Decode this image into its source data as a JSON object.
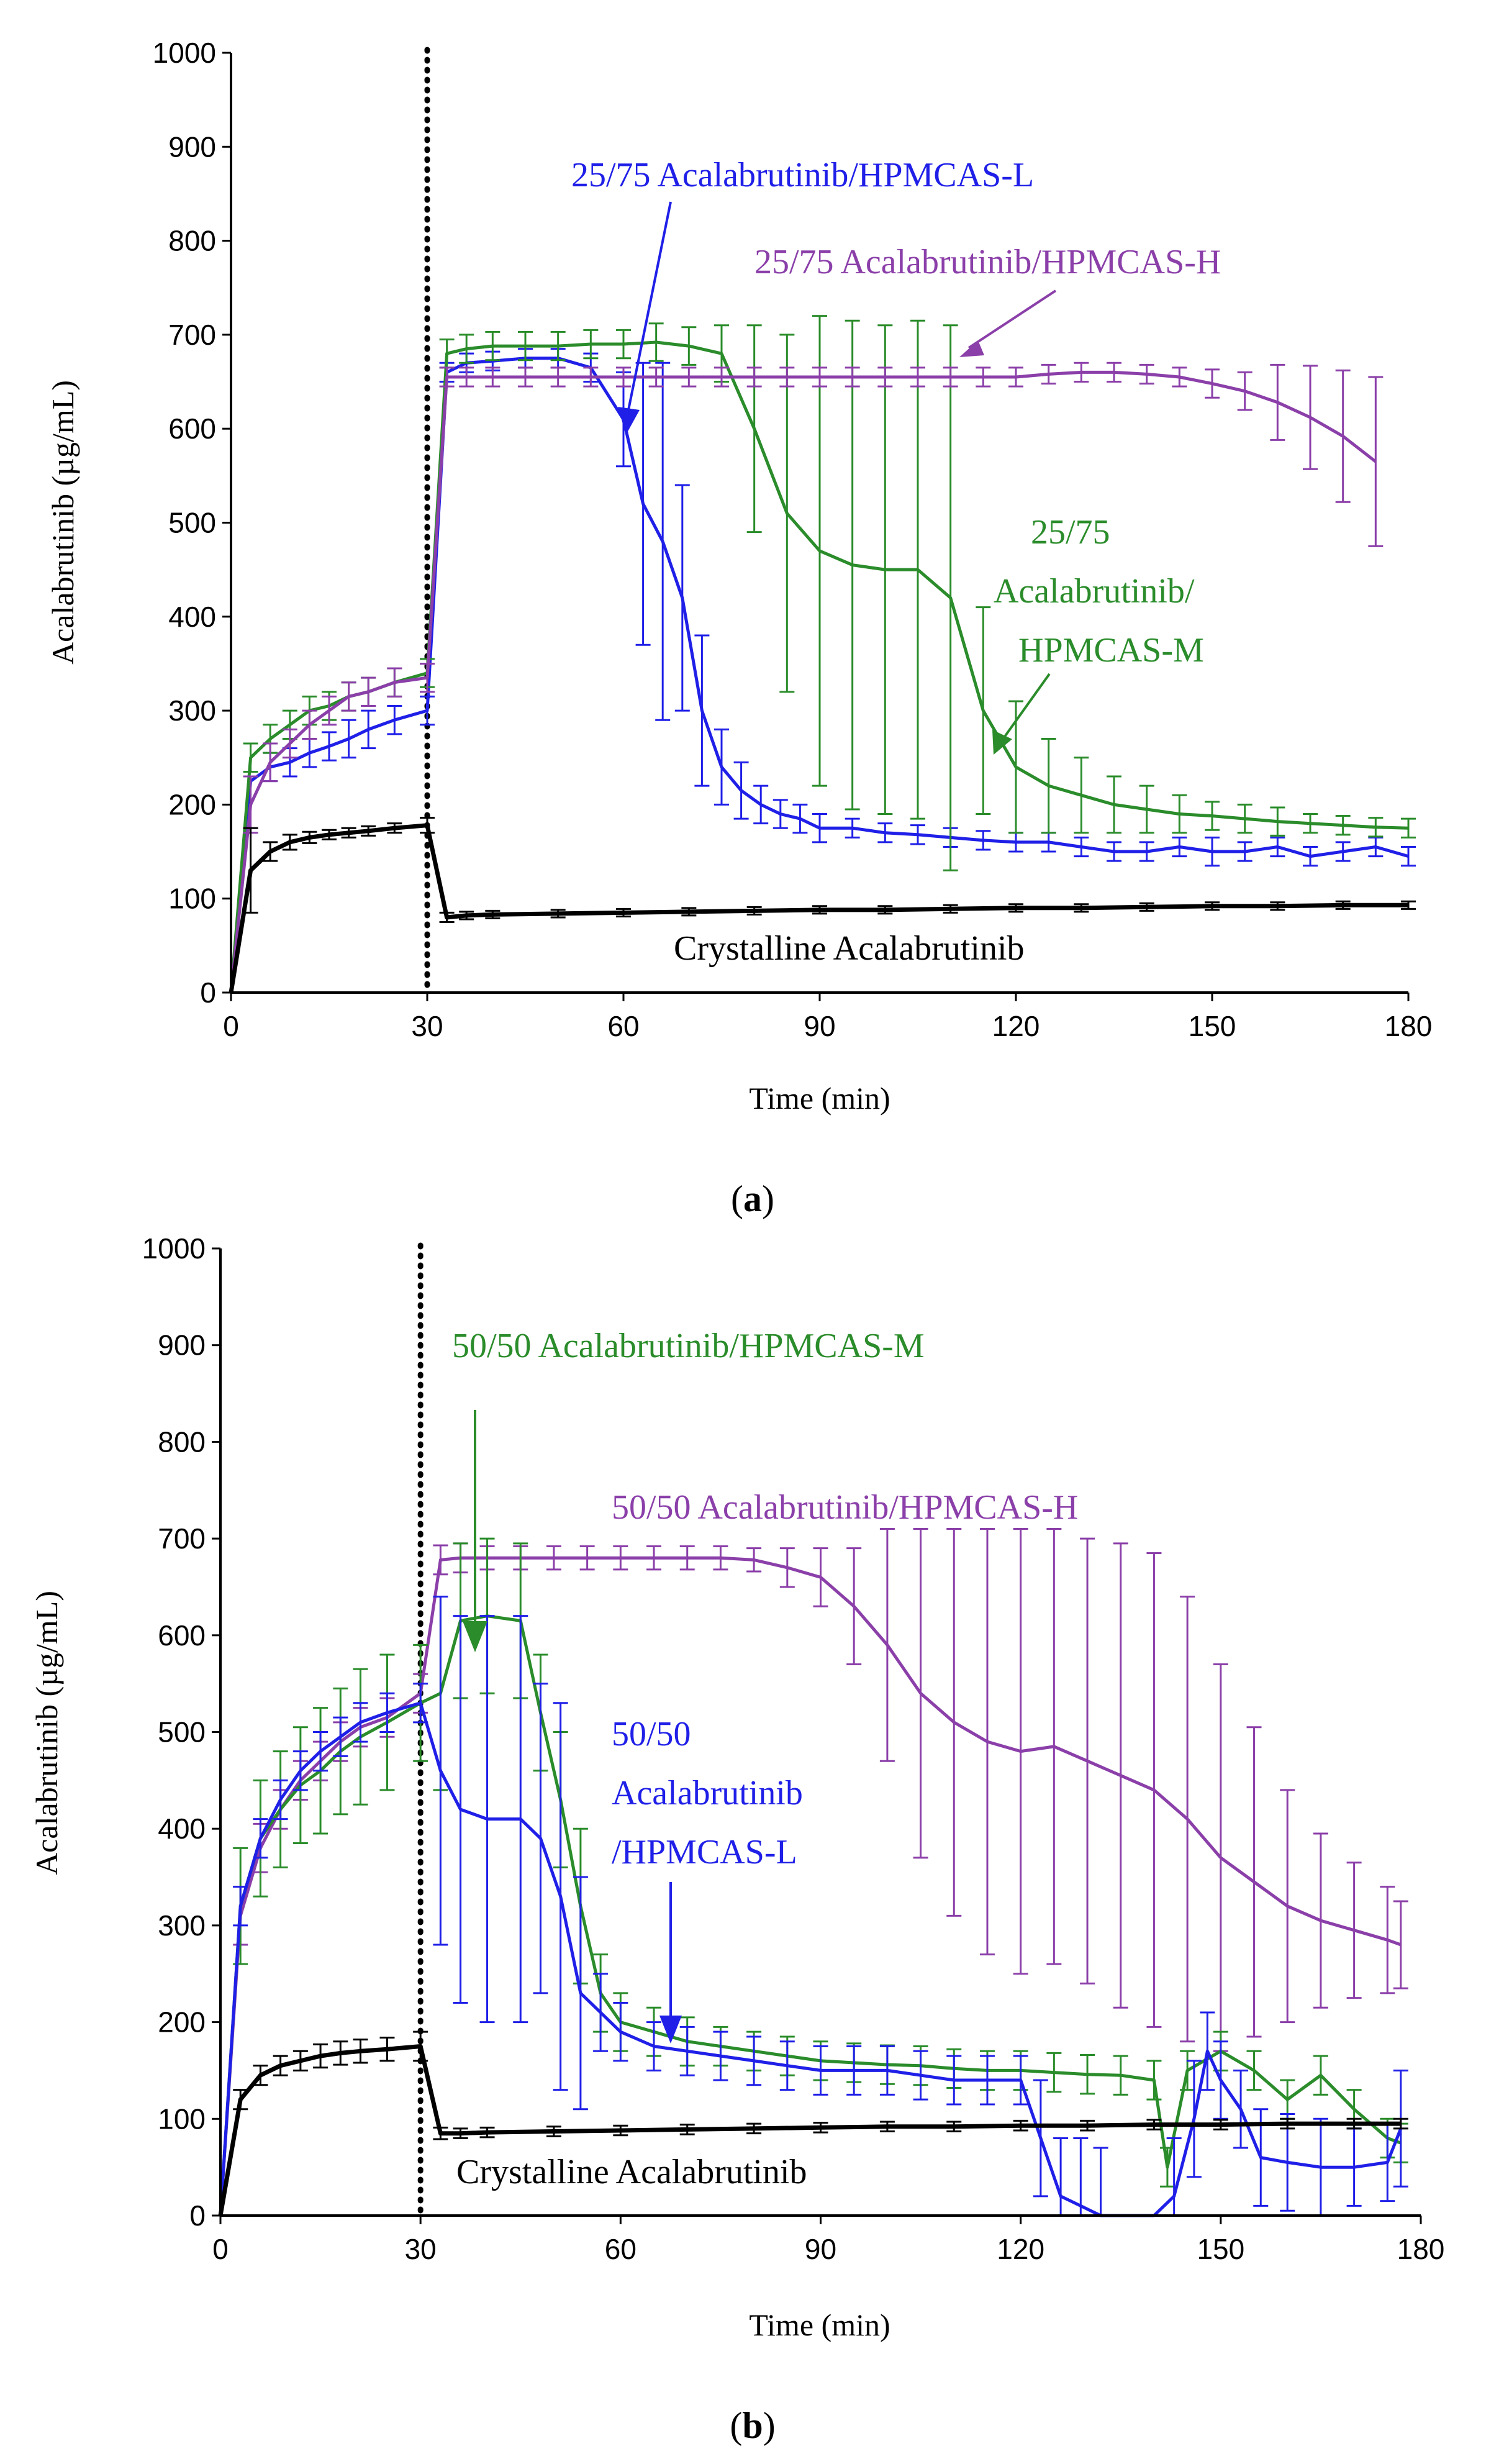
{
  "colors": {
    "l_series": "#1f1fe8",
    "m_series": "#2a8c2a",
    "h_series": "#8b3fa9",
    "crystalline": "#000000",
    "divider": "#000000"
  },
  "chart_data": [
    {
      "panel_label": "(a)",
      "panel_bold": "a",
      "type": "line",
      "xlabel": "Time (min)",
      "ylabel": "Acalabrutinib (µg/mL)",
      "xlim": [
        0,
        180
      ],
      "ylim": [
        0,
        1000
      ],
      "xticks": [
        0,
        30,
        60,
        90,
        120,
        150,
        180
      ],
      "yticks": [
        0,
        100,
        200,
        300,
        400,
        500,
        600,
        700,
        800,
        900,
        1000
      ],
      "divider_x": 30,
      "series": [
        {
          "key": "l_series",
          "name": "25/75 Acalabrutinib/HPMCAS-L",
          "x": [
            0,
            3,
            6,
            9,
            12,
            15,
            18,
            21,
            25,
            30,
            33,
            36,
            40,
            45,
            50,
            55,
            60,
            63,
            66,
            69,
            72,
            75,
            78,
            81,
            84,
            87,
            90,
            95,
            100,
            105,
            110,
            115,
            120,
            125,
            130,
            135,
            140,
            145,
            150,
            155,
            160,
            165,
            170,
            175,
            180
          ],
          "y": [
            0,
            225,
            240,
            245,
            255,
            262,
            270,
            280,
            290,
            300,
            660,
            670,
            672,
            675,
            675,
            665,
            610,
            520,
            480,
            420,
            300,
            240,
            215,
            200,
            190,
            185,
            175,
            175,
            170,
            168,
            165,
            162,
            160,
            160,
            155,
            150,
            150,
            155,
            150,
            150,
            155,
            145,
            150,
            155,
            145
          ],
          "err": [
            0,
            0,
            15,
            15,
            15,
            15,
            20,
            20,
            15,
            15,
            10,
            10,
            10,
            10,
            10,
            15,
            50,
            150,
            190,
            120,
            80,
            40,
            30,
            20,
            15,
            15,
            15,
            10,
            10,
            10,
            10,
            10,
            10,
            10,
            10,
            10,
            10,
            10,
            15,
            10,
            10,
            10,
            10,
            10,
            10
          ]
        },
        {
          "key": "m_series",
          "name": "25/75 Acalabrutinib/HPMCAS-M",
          "x": [
            0,
            3,
            6,
            9,
            12,
            15,
            18,
            21,
            25,
            30,
            33,
            36,
            40,
            45,
            50,
            55,
            60,
            65,
            70,
            75,
            80,
            85,
            90,
            95,
            100,
            105,
            110,
            115,
            120,
            125,
            130,
            135,
            140,
            145,
            150,
            155,
            160,
            165,
            170,
            175,
            180
          ],
          "y": [
            0,
            250,
            270,
            285,
            300,
            305,
            315,
            320,
            330,
            340,
            680,
            685,
            688,
            688,
            688,
            690,
            690,
            692,
            688,
            680,
            600,
            510,
            470,
            455,
            450,
            450,
            420,
            300,
            240,
            220,
            210,
            200,
            195,
            190,
            188,
            185,
            182,
            180,
            178,
            176,
            175
          ],
          "err": [
            0,
            15,
            15,
            15,
            15,
            15,
            15,
            15,
            15,
            15,
            15,
            15,
            15,
            15,
            15,
            15,
            15,
            20,
            20,
            30,
            110,
            190,
            250,
            260,
            260,
            265,
            290,
            110,
            70,
            50,
            40,
            30,
            25,
            20,
            15,
            15,
            15,
            10,
            10,
            10,
            10
          ]
        },
        {
          "key": "h_series",
          "name": "25/75 Acalabrutinib/HPMCAS-H",
          "x": [
            0,
            3,
            6,
            9,
            12,
            15,
            18,
            21,
            25,
            30,
            33,
            36,
            40,
            45,
            50,
            55,
            60,
            65,
            70,
            75,
            80,
            85,
            90,
            95,
            100,
            105,
            110,
            115,
            120,
            125,
            130,
            135,
            140,
            145,
            150,
            155,
            160,
            165,
            170,
            175
          ],
          "y": [
            0,
            200,
            245,
            265,
            285,
            300,
            315,
            320,
            330,
            335,
            655,
            655,
            655,
            655,
            655,
            655,
            655,
            655,
            655,
            655,
            655,
            655,
            655,
            655,
            655,
            655,
            655,
            655,
            655,
            658,
            660,
            660,
            658,
            655,
            648,
            640,
            628,
            612,
            592,
            565
          ],
          "err": [
            0,
            30,
            20,
            15,
            15,
            15,
            15,
            15,
            15,
            15,
            10,
            10,
            10,
            10,
            10,
            10,
            10,
            10,
            10,
            10,
            10,
            10,
            10,
            10,
            10,
            10,
            10,
            10,
            10,
            10,
            10,
            10,
            10,
            10,
            15,
            20,
            40,
            55,
            70,
            90
          ]
        },
        {
          "key": "crystalline",
          "name": "Crystalline Acalabrutinib",
          "x": [
            0,
            3,
            6,
            9,
            12,
            15,
            18,
            21,
            25,
            30,
            33,
            36,
            40,
            50,
            60,
            70,
            80,
            90,
            100,
            110,
            120,
            130,
            140,
            150,
            160,
            170,
            180
          ],
          "y": [
            0,
            130,
            150,
            160,
            165,
            168,
            170,
            172,
            175,
            178,
            80,
            82,
            83,
            84,
            85,
            86,
            87,
            88,
            88,
            89,
            90,
            90,
            91,
            92,
            92,
            93,
            93
          ],
          "err": [
            0,
            45,
            10,
            8,
            6,
            5,
            5,
            5,
            5,
            8,
            5,
            4,
            4,
            4,
            4,
            4,
            4,
            4,
            4,
            4,
            4,
            4,
            4,
            4,
            4,
            4,
            4
          ]
        }
      ],
      "annotations": {
        "l": "25/75 Acalabrutinib/HPMCAS-L",
        "h": "25/75 Acalabrutinib/HPMCAS-H",
        "m1": "25/75",
        "m2": "Acalabrutinib/",
        "m3": "HPMCAS-M",
        "c": "Crystalline Acalabrutinib"
      }
    },
    {
      "panel_label": "(b)",
      "panel_bold": "b",
      "type": "line",
      "xlabel": "Time (min)",
      "ylabel": "Acalabrutinib (µg/mL)",
      "xlim": [
        0,
        180
      ],
      "ylim": [
        0,
        1000
      ],
      "xticks": [
        0,
        30,
        60,
        90,
        120,
        150,
        180
      ],
      "yticks": [
        0,
        100,
        200,
        300,
        400,
        500,
        600,
        700,
        800,
        900,
        1000
      ],
      "divider_x": 30,
      "series": [
        {
          "key": "h_series",
          "name": "50/50 Acalabrutinib/HPMCAS-H",
          "x": [
            0,
            3,
            6,
            9,
            12,
            15,
            18,
            21,
            25,
            30,
            33,
            36,
            40,
            45,
            50,
            55,
            60,
            65,
            70,
            75,
            80,
            85,
            90,
            95,
            100,
            105,
            110,
            115,
            120,
            125,
            130,
            135,
            140,
            145,
            150,
            155,
            160,
            165,
            170,
            175,
            177
          ],
          "y": [
            0,
            310,
            380,
            420,
            450,
            470,
            490,
            505,
            515,
            540,
            678,
            680,
            680,
            680,
            680,
            680,
            680,
            680,
            680,
            680,
            678,
            670,
            660,
            630,
            590,
            540,
            510,
            490,
            480,
            485,
            470,
            455,
            440,
            410,
            370,
            345,
            320,
            305,
            295,
            285,
            280
          ],
          "err": [
            0,
            30,
            25,
            20,
            20,
            20,
            20,
            20,
            20,
            20,
            15,
            15,
            12,
            12,
            12,
            12,
            12,
            12,
            12,
            12,
            12,
            20,
            30,
            60,
            120,
            170,
            200,
            220,
            230,
            225,
            230,
            240,
            245,
            230,
            200,
            160,
            120,
            90,
            70,
            55,
            45
          ]
        },
        {
          "key": "m_series",
          "name": "50/50 Acalabrutinib/HPMCAS-M",
          "x": [
            0,
            3,
            6,
            9,
            12,
            15,
            18,
            21,
            25,
            30,
            33,
            36,
            40,
            45,
            48,
            51,
            54,
            57,
            60,
            65,
            70,
            75,
            80,
            85,
            90,
            95,
            100,
            105,
            110,
            115,
            120,
            125,
            130,
            135,
            140,
            142,
            145,
            150,
            155,
            160,
            165,
            170,
            175,
            177
          ],
          "y": [
            0,
            320,
            390,
            420,
            445,
            460,
            480,
            495,
            510,
            530,
            540,
            615,
            620,
            615,
            520,
            430,
            320,
            230,
            200,
            190,
            180,
            175,
            170,
            165,
            160,
            158,
            156,
            155,
            152,
            150,
            150,
            148,
            146,
            145,
            140,
            50,
            150,
            170,
            150,
            120,
            145,
            110,
            80,
            75
          ],
          "err": [
            0,
            60,
            60,
            60,
            60,
            65,
            65,
            70,
            70,
            60,
            100,
            80,
            80,
            80,
            60,
            70,
            80,
            40,
            30,
            25,
            25,
            20,
            20,
            20,
            20,
            20,
            20,
            20,
            20,
            20,
            20,
            20,
            20,
            20,
            20,
            20,
            20,
            20,
            20,
            20,
            20,
            20,
            20,
            20
          ]
        },
        {
          "key": "l_series",
          "name": "50/50 Acalabrutinib/HPMCAS-L",
          "x": [
            0,
            3,
            6,
            9,
            12,
            15,
            18,
            21,
            25,
            30,
            33,
            36,
            40,
            45,
            48,
            51,
            54,
            57,
            60,
            65,
            70,
            75,
            80,
            85,
            90,
            95,
            100,
            105,
            110,
            115,
            120,
            123,
            126,
            129,
            132,
            135,
            140,
            143,
            146,
            148,
            150,
            153,
            156,
            160,
            165,
            170,
            175,
            177
          ],
          "y": [
            0,
            320,
            390,
            430,
            460,
            480,
            495,
            510,
            520,
            530,
            460,
            420,
            410,
            410,
            390,
            330,
            230,
            210,
            190,
            175,
            170,
            165,
            160,
            155,
            150,
            150,
            150,
            145,
            140,
            140,
            140,
            80,
            20,
            10,
            0,
            0,
            0,
            20,
            100,
            170,
            140,
            110,
            60,
            55,
            50,
            50,
            55,
            90
          ],
          "err": [
            0,
            20,
            20,
            20,
            20,
            20,
            20,
            20,
            20,
            20,
            180,
            200,
            210,
            210,
            160,
            200,
            120,
            40,
            30,
            25,
            25,
            25,
            25,
            25,
            25,
            25,
            25,
            25,
            25,
            25,
            25,
            60,
            60,
            70,
            70,
            0,
            0,
            60,
            60,
            40,
            40,
            40,
            50,
            50,
            50,
            40,
            40,
            60
          ]
        },
        {
          "key": "crystalline",
          "name": "Crystalline Acalabrutinib",
          "x": [
            0,
            3,
            6,
            9,
            12,
            15,
            18,
            21,
            25,
            30,
            33,
            36,
            40,
            50,
            60,
            70,
            80,
            90,
            100,
            110,
            120,
            130,
            140,
            150,
            160,
            170,
            177
          ],
          "y": [
            0,
            120,
            145,
            155,
            160,
            165,
            168,
            170,
            172,
            175,
            85,
            85,
            86,
            87,
            88,
            89,
            90,
            91,
            92,
            92,
            93,
            93,
            94,
            94,
            95,
            95,
            95
          ],
          "err": [
            0,
            10,
            10,
            10,
            10,
            12,
            12,
            12,
            12,
            15,
            6,
            5,
            5,
            5,
            5,
            5,
            5,
            5,
            5,
            5,
            5,
            5,
            5,
            5,
            5,
            5,
            5
          ]
        }
      ],
      "annotations": {
        "m": "50/50 Acalabrutinib/HPMCAS-M",
        "h": "50/50 Acalabrutinib/HPMCAS-H",
        "l1": "50/50",
        "l2": "Acalabrutinib",
        "l3": "/HPMCAS-L",
        "c": "Crystalline Acalabrutinib"
      }
    }
  ]
}
